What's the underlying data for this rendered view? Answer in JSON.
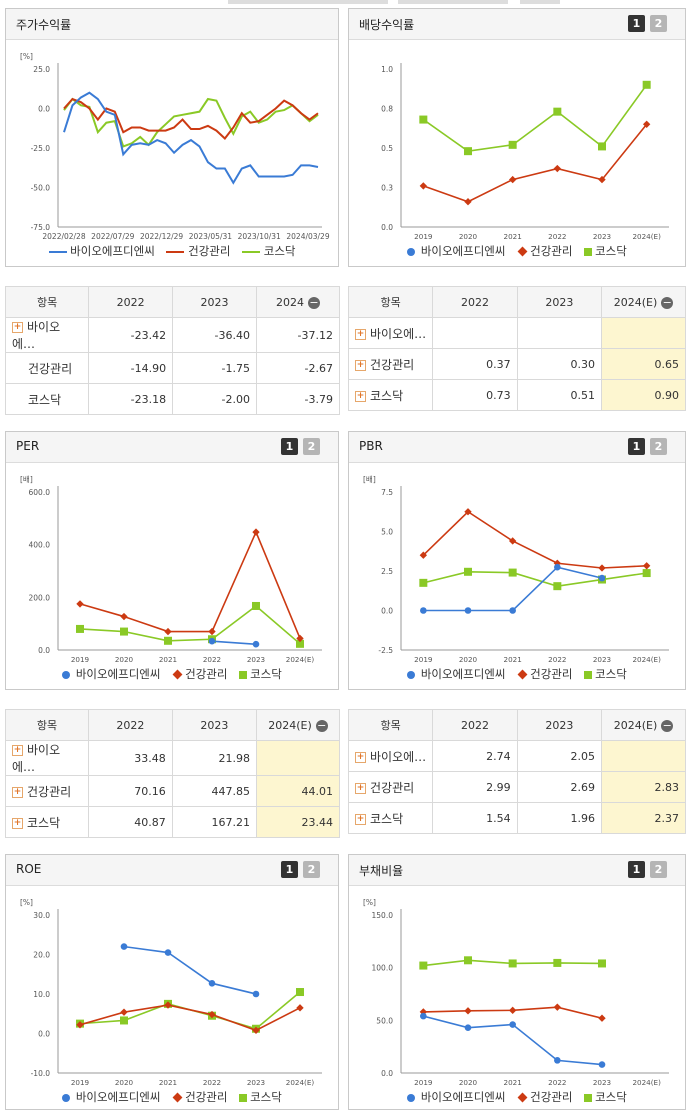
{
  "colors": {
    "bio": "#3a7bd5",
    "health": "#cc3a12",
    "kosdaq": "#8ac926"
  },
  "legend": {
    "bio": "바이오에프디엔씨",
    "health": "건강관리",
    "kosdaq": "코스닥"
  },
  "buttons": {
    "b1": "1",
    "b2": "2"
  },
  "panels": {
    "stock": {
      "title": "주가수익률"
    },
    "div": {
      "title": "배당수익률"
    },
    "per": {
      "title": "PER"
    },
    "pbr": {
      "title": "PBR"
    },
    "roe": {
      "title": "ROE"
    },
    "debt": {
      "title": "부채비율"
    }
  },
  "tables": {
    "stock": {
      "headers": [
        "항목",
        "2022",
        "2023",
        "2024"
      ],
      "rows": [
        {
          "label": "바이오에…",
          "plus": true,
          "values": [
            "-23.42",
            "-36.40",
            "-37.12"
          ]
        },
        {
          "label": "건강관리",
          "plus": false,
          "values": [
            "-14.90",
            "-1.75",
            "-2.67"
          ]
        },
        {
          "label": "코스닥",
          "plus": false,
          "values": [
            "-23.18",
            "-2.00",
            "-3.79"
          ]
        }
      ]
    },
    "div": {
      "headers": [
        "항목",
        "2022",
        "2023",
        "2024(E)"
      ],
      "rows": [
        {
          "label": "바이오에…",
          "plus": true,
          "values": [
            "",
            "",
            ""
          ]
        },
        {
          "label": "건강관리",
          "plus": true,
          "values": [
            "0.37",
            "0.30",
            "0.65"
          ]
        },
        {
          "label": "코스닥",
          "plus": true,
          "values": [
            "0.73",
            "0.51",
            "0.90"
          ]
        }
      ]
    },
    "per": {
      "headers": [
        "항목",
        "2022",
        "2023",
        "2024(E)"
      ],
      "rows": [
        {
          "label": "바이오에…",
          "plus": true,
          "values": [
            "33.48",
            "21.98",
            ""
          ]
        },
        {
          "label": "건강관리",
          "plus": true,
          "values": [
            "70.16",
            "447.85",
            "44.01"
          ]
        },
        {
          "label": "코스닥",
          "plus": true,
          "values": [
            "40.87",
            "167.21",
            "23.44"
          ]
        }
      ]
    },
    "pbr": {
      "headers": [
        "항목",
        "2022",
        "2023",
        "2024(E)"
      ],
      "rows": [
        {
          "label": "바이오에…",
          "plus": true,
          "values": [
            "2.74",
            "2.05",
            ""
          ]
        },
        {
          "label": "건강관리",
          "plus": true,
          "values": [
            "2.99",
            "2.69",
            "2.83"
          ]
        },
        {
          "label": "코스닥",
          "plus": true,
          "values": [
            "1.54",
            "1.96",
            "2.37"
          ]
        }
      ]
    }
  },
  "chart_data": [
    {
      "id": "stock",
      "type": "line",
      "unit": "[%]",
      "ylim": [
        -75,
        25
      ],
      "yticks": [
        "25.0",
        "0.0",
        "-25.0",
        "-50.0",
        "-75.0"
      ],
      "ytick_values": [
        25,
        0,
        -25,
        -50,
        -75
      ],
      "xticks": [
        "2022/02/28",
        "2022/07/29",
        "2022/12/29",
        "2023/05/31",
        "2023/10/31",
        "2024/03/29"
      ],
      "n_points": 31,
      "series": [
        {
          "key": "bio",
          "values": [
            -15,
            2,
            7,
            10,
            6,
            -2,
            -4,
            -29,
            -23,
            -22,
            -23,
            -20,
            -22,
            -28,
            -23,
            -20,
            -24,
            -34,
            -38,
            -38,
            -47,
            -38,
            -36,
            -43,
            -43,
            -43,
            -43,
            -42,
            -36,
            -36,
            -37
          ]
        },
        {
          "key": "health",
          "values": [
            0,
            6,
            4,
            0,
            -7,
            0,
            -2,
            -15,
            -12,
            -12,
            -14,
            -14,
            -14,
            -12,
            -7,
            -13,
            -13,
            -11,
            -14,
            -19,
            -12,
            -3,
            -9,
            -8,
            -4,
            0,
            5,
            2,
            -3,
            -7,
            -3
          ]
        },
        {
          "key": "kosdaq",
          "values": [
            -1,
            6,
            2,
            1,
            -15,
            -9,
            -8,
            -24,
            -22,
            -18,
            -23,
            -15,
            -10,
            -5,
            -4,
            -3,
            -2,
            6,
            5,
            -6,
            -16,
            -5,
            -2,
            -9,
            -7,
            -2,
            -1,
            2,
            -3,
            -8,
            -4
          ]
        }
      ]
    },
    {
      "id": "div",
      "type": "line",
      "unit": "",
      "ylim": [
        0,
        1
      ],
      "yticks": [
        "1.0",
        "0.8",
        "0.5",
        "0.3",
        "0.0"
      ],
      "ytick_values": [
        1.0,
        0.75,
        0.5,
        0.25,
        0
      ],
      "categories": [
        "2019",
        "2020",
        "2021",
        "2022",
        "2023",
        "2024(E)"
      ],
      "series": [
        {
          "key": "bio",
          "values": [
            null,
            null,
            null,
            null,
            null,
            null
          ]
        },
        {
          "key": "health",
          "values": [
            0.26,
            0.16,
            0.3,
            0.37,
            0.3,
            0.65
          ]
        },
        {
          "key": "kosdaq",
          "values": [
            0.68,
            0.48,
            0.52,
            0.73,
            0.51,
            0.9
          ]
        }
      ]
    },
    {
      "id": "per",
      "type": "line",
      "unit": "[배]",
      "ylim": [
        0,
        600
      ],
      "yticks": [
        "600.0",
        "400.0",
        "200.0",
        "0.0"
      ],
      "ytick_values": [
        600,
        400,
        200,
        0
      ],
      "categories": [
        "2019",
        "2020",
        "2021",
        "2022",
        "2023",
        "2024(E)"
      ],
      "series": [
        {
          "key": "bio",
          "values": [
            null,
            null,
            null,
            33.48,
            21.98,
            null
          ]
        },
        {
          "key": "health",
          "values": [
            175,
            127,
            70,
            70.16,
            447.85,
            44.01
          ]
        },
        {
          "key": "kosdaq",
          "values": [
            80,
            70,
            35,
            40.87,
            167.21,
            23.44
          ]
        }
      ]
    },
    {
      "id": "pbr",
      "type": "line",
      "unit": "[배]",
      "ylim": [
        -2.5,
        7.5
      ],
      "yticks": [
        "7.5",
        "5.0",
        "2.5",
        "0.0",
        "-2.5"
      ],
      "ytick_values": [
        7.5,
        5,
        2.5,
        0,
        -2.5
      ],
      "categories": [
        "2019",
        "2020",
        "2021",
        "2022",
        "2023",
        "2024(E)"
      ],
      "series": [
        {
          "key": "bio",
          "values": [
            0,
            0,
            0,
            2.74,
            2.05,
            null
          ]
        },
        {
          "key": "health",
          "values": [
            3.5,
            6.25,
            4.4,
            2.99,
            2.69,
            2.83
          ]
        },
        {
          "key": "kosdaq",
          "values": [
            1.75,
            2.45,
            2.4,
            1.54,
            1.96,
            2.37
          ]
        }
      ]
    },
    {
      "id": "roe",
      "type": "line",
      "unit": "[%]",
      "ylim": [
        -10,
        30
      ],
      "yticks": [
        "30.0",
        "20.0",
        "10.0",
        "0.0",
        "-10.0"
      ],
      "ytick_values": [
        30,
        20,
        10,
        0,
        -10
      ],
      "categories": [
        "2019",
        "2020",
        "2021",
        "2022",
        "2023",
        "2024(E)"
      ],
      "series": [
        {
          "key": "bio",
          "values": [
            null,
            22,
            20.5,
            12.7,
            10,
            null
          ]
        },
        {
          "key": "health",
          "values": [
            2.2,
            5.4,
            7.2,
            4.8,
            0.8,
            6.5
          ]
        },
        {
          "key": "kosdaq",
          "values": [
            2.5,
            3.3,
            7.5,
            4.5,
            1.2,
            10.5
          ]
        }
      ]
    },
    {
      "id": "debt",
      "type": "line",
      "unit": "[%]",
      "ylim": [
        0,
        150
      ],
      "yticks": [
        "150.0",
        "100.0",
        "50.0",
        "0.0"
      ],
      "ytick_values": [
        150,
        100,
        50,
        0
      ],
      "categories": [
        "2019",
        "2020",
        "2021",
        "2022",
        "2023",
        "2024(E)"
      ],
      "series": [
        {
          "key": "bio",
          "values": [
            54,
            43,
            46,
            12,
            8,
            null
          ]
        },
        {
          "key": "health",
          "values": [
            58,
            59,
            59.5,
            62.5,
            52,
            null
          ]
        },
        {
          "key": "kosdaq",
          "values": [
            102,
            107,
            104,
            104.5,
            104,
            null
          ]
        }
      ]
    }
  ]
}
